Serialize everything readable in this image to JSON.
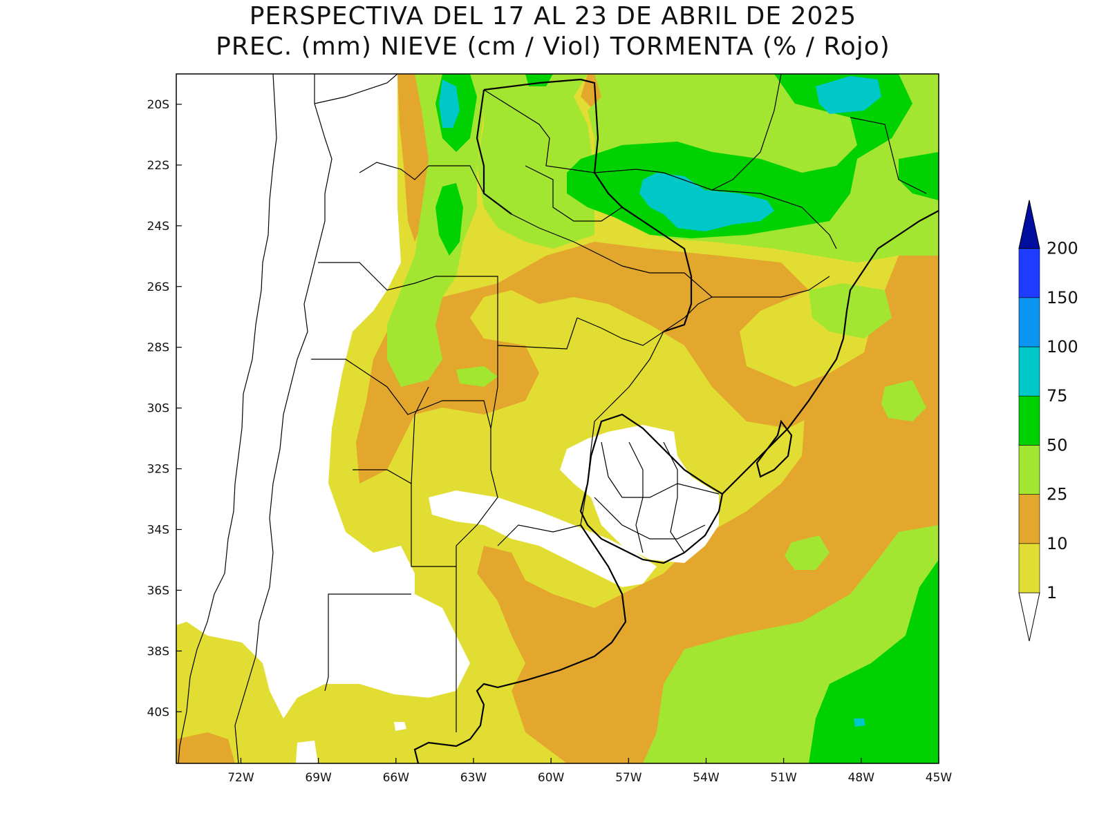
{
  "title": {
    "line1": "PERSPECTIVA DEL 17 AL 23 DE ABRIL DE 2025",
    "line2": "PREC. (mm) NIEVE (cm / Viol) TORMENTA (% / Rojo)"
  },
  "map": {
    "lon_range": [
      -74.5,
      -45
    ],
    "lat_range": [
      -41.7,
      -19
    ],
    "lon_ticks": [
      {
        "value": -72,
        "label": "72W"
      },
      {
        "value": -69,
        "label": "69W"
      },
      {
        "value": -66,
        "label": "66W"
      },
      {
        "value": -63,
        "label": "63W"
      },
      {
        "value": -60,
        "label": "60W"
      },
      {
        "value": -57,
        "label": "57W"
      },
      {
        "value": -54,
        "label": "54W"
      },
      {
        "value": -51,
        "label": "51W"
      },
      {
        "value": -48,
        "label": "48W"
      },
      {
        "value": -45,
        "label": "45W"
      }
    ],
    "lat_ticks": [
      {
        "value": -20,
        "label": "20S"
      },
      {
        "value": -22,
        "label": "22S"
      },
      {
        "value": -24,
        "label": "24S"
      },
      {
        "value": -26,
        "label": "26S"
      },
      {
        "value": -28,
        "label": "28S"
      },
      {
        "value": -30,
        "label": "30S"
      },
      {
        "value": -32,
        "label": "32S"
      },
      {
        "value": -34,
        "label": "34S"
      },
      {
        "value": -36,
        "label": "36S"
      },
      {
        "value": -38,
        "label": "38S"
      },
      {
        "value": -40,
        "label": "40S"
      }
    ]
  },
  "colorbar": {
    "levels": [
      {
        "label": "1",
        "color": "#e2dd33"
      },
      {
        "label": "10",
        "color": "#e4a72e"
      },
      {
        "label": "25",
        "color": "#a2e632"
      },
      {
        "label": "50",
        "color": "#00d100"
      },
      {
        "label": "75",
        "color": "#00c8c8"
      },
      {
        "label": "100",
        "color": "#0a96f0"
      },
      {
        "label": "150",
        "color": "#1e3cff"
      },
      {
        "label": "200",
        "color": "#000fa0"
      }
    ],
    "below_color": "#ffffff",
    "top_color": "#000fa0"
  },
  "colors": {
    "c1": "#e2dd33",
    "c10": "#e4a72e",
    "c25": "#a2e632",
    "c50": "#00d100",
    "c75": "#00c8c8",
    "none": "#ffffff"
  }
}
